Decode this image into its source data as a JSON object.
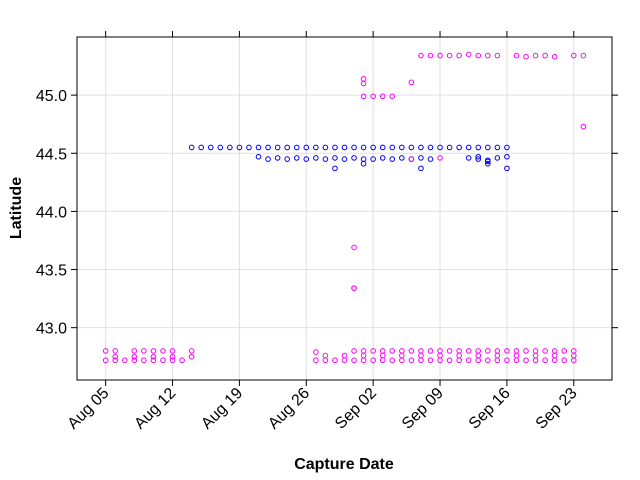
{
  "chart_data": {
    "type": "scatter",
    "xlabel": "Capture Date",
    "ylabel": "Latitude",
    "x_axis_type": "date",
    "xlim": [
      "2024-08-02",
      "2024-09-27"
    ],
    "ylim": [
      42.55,
      45.5
    ],
    "x_ticks": [
      {
        "date": "2024-08-05",
        "label": "Aug 05"
      },
      {
        "date": "2024-08-12",
        "label": "Aug 12"
      },
      {
        "date": "2024-08-19",
        "label": "Aug 19"
      },
      {
        "date": "2024-08-26",
        "label": "Aug 26"
      },
      {
        "date": "2024-09-02",
        "label": "Sep 02"
      },
      {
        "date": "2024-09-09",
        "label": "Sep 09"
      },
      {
        "date": "2024-09-16",
        "label": "Sep 16"
      },
      {
        "date": "2024-09-23",
        "label": "Sep 23"
      }
    ],
    "y_ticks": [
      {
        "value": 43.0,
        "label": "43.0"
      },
      {
        "value": 43.5,
        "label": "43.5"
      },
      {
        "value": 44.0,
        "label": "44.0"
      },
      {
        "value": 44.5,
        "label": "44.5"
      },
      {
        "value": 45.0,
        "label": "45.0"
      }
    ],
    "grid": true,
    "legend": "none",
    "marker": "open-circle",
    "series": [
      {
        "color": "#0000ff",
        "points": [
          [
            "2024-08-14",
            44.55
          ],
          [
            "2024-08-15",
            44.55
          ],
          [
            "2024-08-16",
            44.55
          ],
          [
            "2024-08-17",
            44.55
          ],
          [
            "2024-08-18",
            44.55
          ],
          [
            "2024-08-19",
            44.55
          ],
          [
            "2024-08-20",
            44.55
          ],
          [
            "2024-08-21",
            44.55
          ],
          [
            "2024-08-22",
            44.55
          ],
          [
            "2024-08-23",
            44.55
          ],
          [
            "2024-08-24",
            44.55
          ],
          [
            "2024-08-25",
            44.55
          ],
          [
            "2024-08-26",
            44.55
          ],
          [
            "2024-08-27",
            44.55
          ],
          [
            "2024-08-28",
            44.55
          ],
          [
            "2024-08-29",
            44.55
          ],
          [
            "2024-08-30",
            44.55
          ],
          [
            "2024-08-31",
            44.55
          ],
          [
            "2024-09-01",
            44.55
          ],
          [
            "2024-09-02",
            44.55
          ],
          [
            "2024-09-03",
            44.55
          ],
          [
            "2024-09-04",
            44.55
          ],
          [
            "2024-09-05",
            44.55
          ],
          [
            "2024-09-06",
            44.55
          ],
          [
            "2024-09-07",
            44.55
          ],
          [
            "2024-09-08",
            44.55
          ],
          [
            "2024-09-09",
            44.55
          ],
          [
            "2024-09-10",
            44.55
          ],
          [
            "2024-09-11",
            44.55
          ],
          [
            "2024-09-12",
            44.55
          ],
          [
            "2024-09-13",
            44.55
          ],
          [
            "2024-09-14",
            44.55
          ],
          [
            "2024-09-15",
            44.55
          ],
          [
            "2024-09-16",
            44.55
          ],
          [
            "2024-08-21",
            44.47
          ],
          [
            "2024-08-22",
            44.45
          ],
          [
            "2024-08-23",
            44.46
          ],
          [
            "2024-08-24",
            44.45
          ],
          [
            "2024-08-25",
            44.46
          ],
          [
            "2024-08-26",
            44.45
          ],
          [
            "2024-08-27",
            44.46
          ],
          [
            "2024-08-28",
            44.45
          ],
          [
            "2024-08-29",
            44.46
          ],
          [
            "2024-08-30",
            44.45
          ],
          [
            "2024-08-31",
            44.46
          ],
          [
            "2024-09-01",
            44.45
          ],
          [
            "2024-09-02",
            44.45
          ],
          [
            "2024-09-03",
            44.46
          ],
          [
            "2024-09-04",
            44.45
          ],
          [
            "2024-09-05",
            44.46
          ],
          [
            "2024-09-06",
            44.45
          ],
          [
            "2024-09-07",
            44.46
          ],
          [
            "2024-09-08",
            44.45
          ],
          [
            "2024-09-12",
            44.46
          ],
          [
            "2024-09-13",
            44.45
          ],
          [
            "2024-09-14",
            44.44
          ],
          [
            "2024-09-15",
            44.46
          ],
          [
            "2024-08-29",
            44.37
          ],
          [
            "2024-09-01",
            44.41
          ],
          [
            "2024-09-07",
            44.37
          ],
          [
            "2024-09-14",
            44.41
          ],
          [
            "2024-09-14",
            44.43
          ],
          [
            "2024-09-16",
            44.37
          ],
          [
            "2024-09-16",
            44.47
          ],
          [
            "2024-09-13",
            44.47
          ]
        ]
      },
      {
        "color": "#ff00ff",
        "points": [
          [
            "2024-08-05",
            42.8
          ],
          [
            "2024-08-06",
            42.8
          ],
          [
            "2024-08-08",
            42.8
          ],
          [
            "2024-08-09",
            42.8
          ],
          [
            "2024-08-10",
            42.8
          ],
          [
            "2024-08-11",
            42.8
          ],
          [
            "2024-08-12",
            42.8
          ],
          [
            "2024-08-14",
            42.8
          ],
          [
            "2024-08-05",
            42.72
          ],
          [
            "2024-08-06",
            42.72
          ],
          [
            "2024-08-07",
            42.72
          ],
          [
            "2024-08-08",
            42.72
          ],
          [
            "2024-08-09",
            42.72
          ],
          [
            "2024-08-10",
            42.72
          ],
          [
            "2024-08-11",
            42.72
          ],
          [
            "2024-08-12",
            42.72
          ],
          [
            "2024-08-13",
            42.72
          ],
          [
            "2024-08-06",
            42.75
          ],
          [
            "2024-08-08",
            42.75
          ],
          [
            "2024-08-10",
            42.75
          ],
          [
            "2024-08-12",
            42.75
          ],
          [
            "2024-08-14",
            42.75
          ],
          [
            "2024-08-27",
            42.79
          ],
          [
            "2024-08-27",
            42.72
          ],
          [
            "2024-08-28",
            42.72
          ],
          [
            "2024-08-29",
            42.72
          ],
          [
            "2024-08-30",
            42.72
          ],
          [
            "2024-08-31",
            42.72
          ],
          [
            "2024-09-01",
            42.72
          ],
          [
            "2024-09-02",
            42.72
          ],
          [
            "2024-09-03",
            42.72
          ],
          [
            "2024-09-04",
            42.72
          ],
          [
            "2024-09-05",
            42.72
          ],
          [
            "2024-09-06",
            42.72
          ],
          [
            "2024-09-07",
            42.72
          ],
          [
            "2024-09-08",
            42.72
          ],
          [
            "2024-09-09",
            42.72
          ],
          [
            "2024-09-10",
            42.72
          ],
          [
            "2024-09-11",
            42.72
          ],
          [
            "2024-09-12",
            42.72
          ],
          [
            "2024-09-13",
            42.72
          ],
          [
            "2024-09-14",
            42.72
          ],
          [
            "2024-09-15",
            42.72
          ],
          [
            "2024-09-16",
            42.72
          ],
          [
            "2024-09-17",
            42.72
          ],
          [
            "2024-09-18",
            42.72
          ],
          [
            "2024-09-19",
            42.72
          ],
          [
            "2024-09-20",
            42.72
          ],
          [
            "2024-09-21",
            42.72
          ],
          [
            "2024-09-22",
            42.72
          ],
          [
            "2024-09-23",
            42.72
          ],
          [
            "2024-08-28",
            42.76
          ],
          [
            "2024-08-30",
            42.76
          ],
          [
            "2024-09-01",
            42.76
          ],
          [
            "2024-09-03",
            42.76
          ],
          [
            "2024-09-05",
            42.76
          ],
          [
            "2024-09-07",
            42.76
          ],
          [
            "2024-09-09",
            42.76
          ],
          [
            "2024-09-11",
            42.76
          ],
          [
            "2024-09-13",
            42.76
          ],
          [
            "2024-09-15",
            42.76
          ],
          [
            "2024-09-17",
            42.76
          ],
          [
            "2024-09-19",
            42.76
          ],
          [
            "2024-09-21",
            42.76
          ],
          [
            "2024-09-23",
            42.76
          ],
          [
            "2024-08-31",
            42.8
          ],
          [
            "2024-09-01",
            42.8
          ],
          [
            "2024-09-02",
            42.8
          ],
          [
            "2024-09-03",
            42.8
          ],
          [
            "2024-09-04",
            42.8
          ],
          [
            "2024-09-05",
            42.8
          ],
          [
            "2024-09-06",
            42.8
          ],
          [
            "2024-09-07",
            42.8
          ],
          [
            "2024-09-08",
            42.8
          ],
          [
            "2024-09-09",
            42.8
          ],
          [
            "2024-09-10",
            42.8
          ],
          [
            "2024-09-11",
            42.8
          ],
          [
            "2024-09-12",
            42.8
          ],
          [
            "2024-09-13",
            42.8
          ],
          [
            "2024-09-14",
            42.8
          ],
          [
            "2024-09-15",
            42.8
          ],
          [
            "2024-09-16",
            42.8
          ],
          [
            "2024-09-17",
            42.8
          ],
          [
            "2024-09-18",
            42.8
          ],
          [
            "2024-09-19",
            42.8
          ],
          [
            "2024-09-20",
            42.8
          ],
          [
            "2024-09-21",
            42.8
          ],
          [
            "2024-09-22",
            42.8
          ],
          [
            "2024-09-23",
            42.8
          ],
          [
            "2024-08-31",
            43.34
          ],
          [
            "2024-08-31",
            43.34
          ],
          [
            "2024-08-31",
            43.69
          ],
          [
            "2024-09-01",
            45.14
          ],
          [
            "2024-09-01",
            45.1
          ],
          [
            "2024-09-01",
            44.99
          ],
          [
            "2024-09-02",
            44.99
          ],
          [
            "2024-09-03",
            44.99
          ],
          [
            "2024-09-04",
            44.99
          ],
          [
            "2024-09-06",
            45.11
          ],
          [
            "2024-09-07",
            45.34
          ],
          [
            "2024-09-08",
            45.34
          ],
          [
            "2024-09-09",
            45.34
          ],
          [
            "2024-09-10",
            45.34
          ],
          [
            "2024-09-11",
            45.34
          ],
          [
            "2024-09-12",
            45.35
          ],
          [
            "2024-09-13",
            45.34
          ],
          [
            "2024-09-14",
            45.34
          ],
          [
            "2024-09-15",
            45.34
          ],
          [
            "2024-09-17",
            45.34
          ],
          [
            "2024-09-18",
            45.33
          ],
          [
            "2024-09-19",
            45.34
          ],
          [
            "2024-09-20",
            45.34
          ],
          [
            "2024-09-21",
            45.33
          ],
          [
            "2024-09-23",
            45.34
          ],
          [
            "2024-09-24",
            45.34
          ],
          [
            "2024-09-24",
            44.73
          ],
          [
            "2024-09-09",
            44.46
          ],
          [
            "2024-09-06",
            44.45
          ]
        ]
      }
    ]
  }
}
